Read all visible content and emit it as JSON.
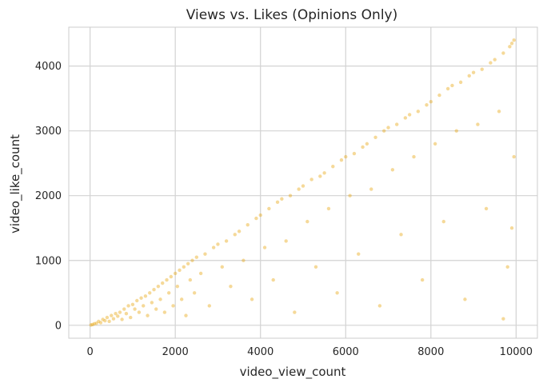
{
  "chart_data": {
    "type": "scatter",
    "title": "Views vs. Likes (Opinions Only)",
    "xlabel": "video_view_count",
    "ylabel": "video_like_count",
    "xlim": [
      -500,
      10500
    ],
    "ylim": [
      -200,
      4600
    ],
    "x_ticks": [
      0,
      2000,
      4000,
      6000,
      8000,
      10000
    ],
    "y_ticks": [
      0,
      1000,
      2000,
      3000,
      4000
    ],
    "grid": true,
    "legend": "none",
    "point_color": "#E6A100",
    "point_opacity": 0.4,
    "series": [
      {
        "points": [
          [
            20,
            5
          ],
          [
            60,
            10
          ],
          [
            100,
            25
          ],
          [
            150,
            30
          ],
          [
            200,
            60
          ],
          [
            250,
            40
          ],
          [
            300,
            90
          ],
          [
            350,
            70
          ],
          [
            400,
            120
          ],
          [
            450,
            60
          ],
          [
            500,
            150
          ],
          [
            550,
            100
          ],
          [
            600,
            180
          ],
          [
            650,
            140
          ],
          [
            700,
            200
          ],
          [
            750,
            90
          ],
          [
            800,
            250
          ],
          [
            850,
            180
          ],
          [
            900,
            300
          ],
          [
            950,
            120
          ],
          [
            1000,
            320
          ],
          [
            1050,
            250
          ],
          [
            1100,
            380
          ],
          [
            1150,
            200
          ],
          [
            1200,
            420
          ],
          [
            1250,
            300
          ],
          [
            1300,
            450
          ],
          [
            1350,
            150
          ],
          [
            1400,
            500
          ],
          [
            1450,
            350
          ],
          [
            1500,
            550
          ],
          [
            1550,
            250
          ],
          [
            1600,
            600
          ],
          [
            1650,
            400
          ],
          [
            1700,
            650
          ],
          [
            1750,
            200
          ],
          [
            1800,
            700
          ],
          [
            1850,
            500
          ],
          [
            1900,
            750
          ],
          [
            1950,
            300
          ],
          [
            2000,
            800
          ],
          [
            2050,
            600
          ],
          [
            2100,
            850
          ],
          [
            2150,
            400
          ],
          [
            2200,
            900
          ],
          [
            2250,
            150
          ],
          [
            2300,
            950
          ],
          [
            2350,
            700
          ],
          [
            2400,
            1000
          ],
          [
            2450,
            500
          ],
          [
            2500,
            1050
          ],
          [
            2600,
            800
          ],
          [
            2700,
            1100
          ],
          [
            2800,
            300
          ],
          [
            2900,
            1200
          ],
          [
            3000,
            1250
          ],
          [
            3100,
            900
          ],
          [
            3200,
            1300
          ],
          [
            3300,
            600
          ],
          [
            3400,
            1400
          ],
          [
            3500,
            1450
          ],
          [
            3600,
            1000
          ],
          [
            3700,
            1550
          ],
          [
            3800,
            400
          ],
          [
            3900,
            1650
          ],
          [
            4000,
            1700
          ],
          [
            4100,
            1200
          ],
          [
            4200,
            1800
          ],
          [
            4300,
            700
          ],
          [
            4400,
            1900
          ],
          [
            4500,
            1950
          ],
          [
            4600,
            1300
          ],
          [
            4700,
            2000
          ],
          [
            4800,
            200
          ],
          [
            4900,
            2100
          ],
          [
            5000,
            2150
          ],
          [
            5100,
            1600
          ],
          [
            5200,
            2250
          ],
          [
            5300,
            900
          ],
          [
            5400,
            2300
          ],
          [
            5500,
            2350
          ],
          [
            5600,
            1800
          ],
          [
            5700,
            2450
          ],
          [
            5800,
            500
          ],
          [
            5900,
            2550
          ],
          [
            6000,
            2600
          ],
          [
            6100,
            2000
          ],
          [
            6200,
            2650
          ],
          [
            6300,
            1100
          ],
          [
            6400,
            2750
          ],
          [
            6500,
            2800
          ],
          [
            6600,
            2100
          ],
          [
            6700,
            2900
          ],
          [
            6800,
            300
          ],
          [
            6900,
            3000
          ],
          [
            7000,
            3050
          ],
          [
            7100,
            2400
          ],
          [
            7200,
            3100
          ],
          [
            7300,
            1400
          ],
          [
            7400,
            3200
          ],
          [
            7500,
            3250
          ],
          [
            7600,
            2600
          ],
          [
            7700,
            3300
          ],
          [
            7800,
            700
          ],
          [
            7900,
            3400
          ],
          [
            8000,
            3450
          ],
          [
            8100,
            2800
          ],
          [
            8200,
            3550
          ],
          [
            8300,
            1600
          ],
          [
            8400,
            3650
          ],
          [
            8500,
            3700
          ],
          [
            8600,
            3000
          ],
          [
            8700,
            3750
          ],
          [
            8800,
            400
          ],
          [
            8900,
            3850
          ],
          [
            9000,
            3900
          ],
          [
            9100,
            3100
          ],
          [
            9200,
            3950
          ],
          [
            9300,
            1800
          ],
          [
            9400,
            4050
          ],
          [
            9500,
            4100
          ],
          [
            9600,
            3300
          ],
          [
            9700,
            4200
          ],
          [
            9800,
            900
          ],
          [
            9850,
            4300
          ],
          [
            9900,
            4350
          ],
          [
            9950,
            4400
          ],
          [
            9950,
            2600
          ],
          [
            9900,
            1500
          ],
          [
            9700,
            100
          ]
        ]
      }
    ]
  }
}
